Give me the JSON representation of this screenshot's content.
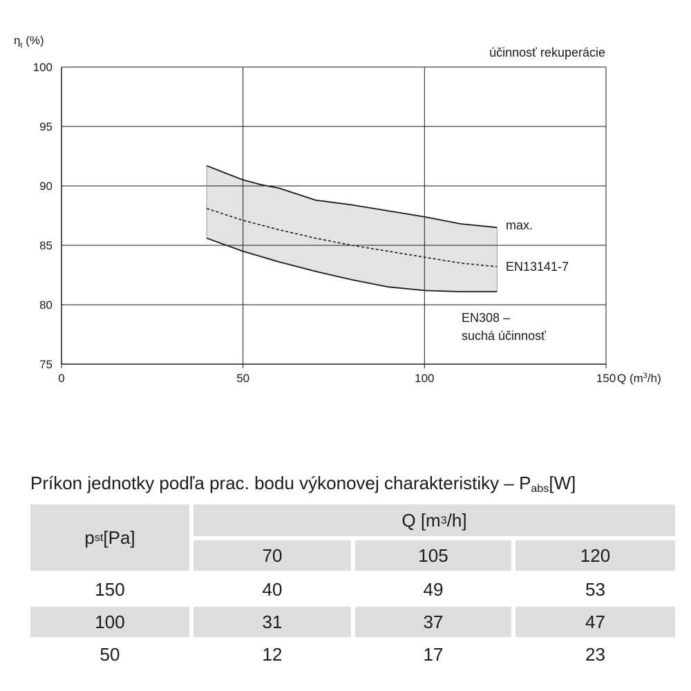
{
  "chart_data": {
    "type": "area",
    "y_axis_label": {
      "symbol": "η",
      "subscript": "t",
      "unit": " (%)"
    },
    "x_axis_label": {
      "prefix": "Q (m",
      "superscript": "3",
      "suffix": "/h)"
    },
    "title": "účinnosť rekuperácie",
    "x_ticks": [
      "0",
      "50",
      "100",
      "150"
    ],
    "y_ticks": [
      "75",
      "80",
      "85",
      "90",
      "95",
      "100"
    ],
    "xlim": [
      0,
      150
    ],
    "ylim": [
      75,
      100
    ],
    "grid": true,
    "band_color": "#e3e3e3",
    "line_color": "#1a1a1a",
    "series": [
      {
        "name": "max.",
        "style": "solid",
        "x": [
          40,
          45,
          50,
          55,
          60,
          65,
          70,
          80,
          90,
          100,
          110,
          120
        ],
        "y": [
          91.7,
          91.1,
          90.5,
          90.1,
          89.8,
          89.3,
          88.8,
          88.4,
          87.9,
          87.4,
          86.8,
          86.5
        ]
      },
      {
        "name": "EN13141-7",
        "style": "dashed",
        "x": [
          40,
          50,
          60,
          70,
          80,
          90,
          100,
          110,
          120
        ],
        "y": [
          88.1,
          87.1,
          86.3,
          85.6,
          85.0,
          84.5,
          84.0,
          83.5,
          83.2
        ]
      },
      {
        "name": "EN308 – suchá účinnosť",
        "style": "solid",
        "x": [
          40,
          50,
          60,
          70,
          80,
          90,
          100,
          110,
          120
        ],
        "y": [
          85.6,
          84.5,
          83.6,
          82.8,
          82.1,
          81.5,
          81.2,
          81.1,
          81.1
        ]
      }
    ],
    "annotations": {
      "max": "max.",
      "en13141": "EN13141-7",
      "en308_line1": "EN308 –",
      "en308_line2": "suchá účinnosť"
    }
  },
  "table": {
    "caption_prefix": "Príkon jednotky podľa prac. bodu výkonovej charakteristiky – P",
    "caption_sub": "abs",
    "caption_suffix": "[W]",
    "row_header": {
      "symbol": "p",
      "sub": "st",
      "unit": " [Pa]"
    },
    "q_header": {
      "prefix": "Q [m",
      "sup": "3",
      "suffix": "/h]"
    },
    "columns": [
      "70",
      "105",
      "120"
    ],
    "rows": [
      {
        "pst": "150",
        "values": [
          "40",
          "49",
          "53"
        ]
      },
      {
        "pst": "100",
        "values": [
          "31",
          "37",
          "47"
        ]
      },
      {
        "pst": "50",
        "values": [
          "12",
          "17",
          "23"
        ]
      }
    ],
    "shade_color": "#dedede"
  }
}
